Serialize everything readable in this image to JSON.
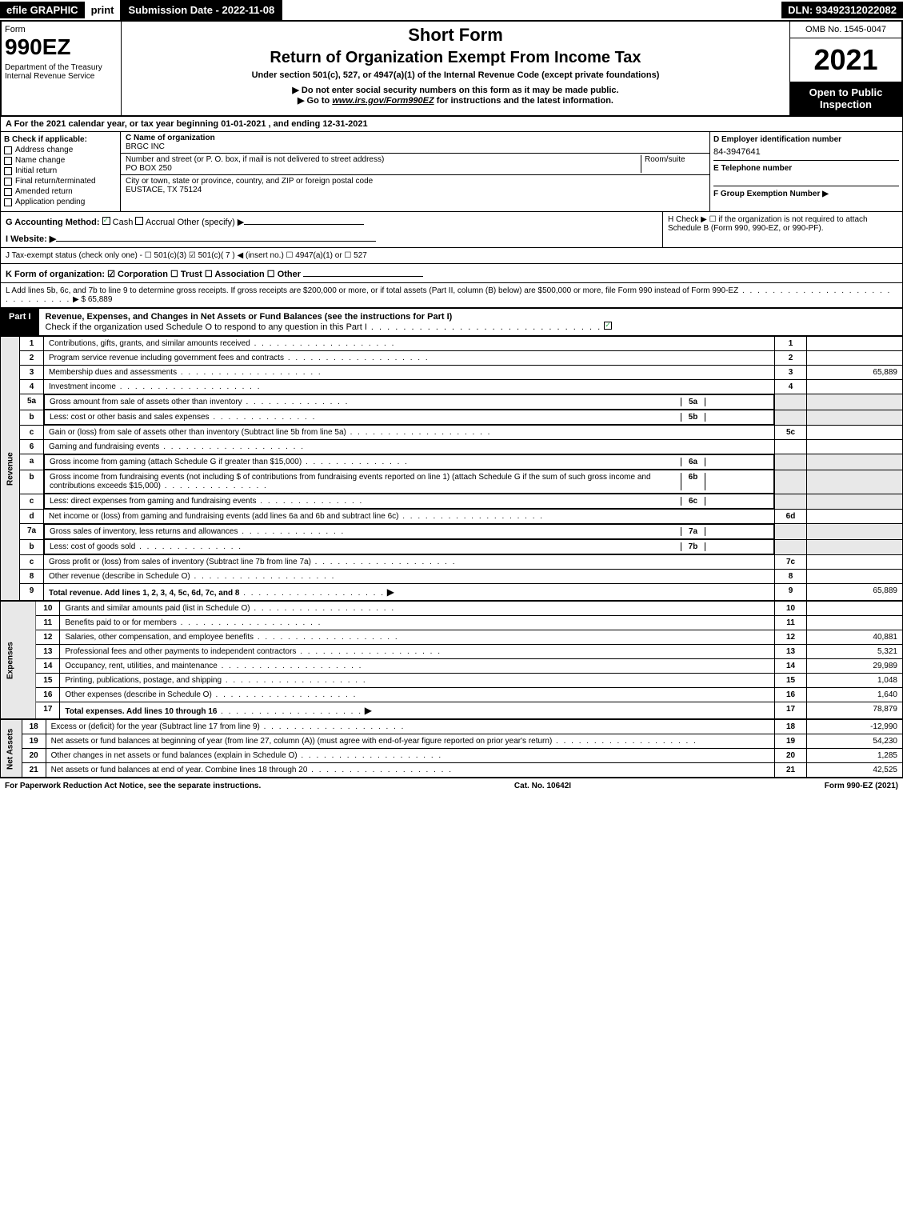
{
  "top_bar": {
    "efile": "efile GRAPHIC",
    "print": "print",
    "submission_date": "Submission Date - 2022-11-08",
    "dln": "DLN: 93492312022082"
  },
  "header": {
    "form_label": "Form",
    "form_number": "990EZ",
    "dept": "Department of the Treasury\nInternal Revenue Service",
    "short_form": "Short Form",
    "return_title": "Return of Organization Exempt From Income Tax",
    "under_section": "Under section 501(c), 527, or 4947(a)(1) of the Internal Revenue Code (except private foundations)",
    "do_not": "▶ Do not enter social security numbers on this form as it may be made public.",
    "goto_prefix": "▶ Go to ",
    "goto_link": "www.irs.gov/Form990EZ",
    "goto_suffix": " for instructions and the latest information.",
    "omb": "OMB No. 1545-0047",
    "year": "2021",
    "open": "Open to Public Inspection"
  },
  "line_a": "A  For the 2021 calendar year, or tax year beginning 01-01-2021 , and ending 12-31-2021",
  "box_b": {
    "header": "B  Check if applicable:",
    "items": [
      "Address change",
      "Name change",
      "Initial return",
      "Final return/terminated",
      "Amended return",
      "Application pending"
    ]
  },
  "box_c": {
    "name_label": "C Name of organization",
    "name": "BRGC INC",
    "addr_label": "Number and street (or P. O. box, if mail is not delivered to street address)",
    "room_label": "Room/suite",
    "addr": "PO BOX 250",
    "city_label": "City or town, state or province, country, and ZIP or foreign postal code",
    "city": "EUSTACE, TX  75124"
  },
  "box_d": {
    "ein_label": "D Employer identification number",
    "ein": "84-3947641",
    "phone_label": "E Telephone number",
    "group_label": "F Group Exemption Number   ▶"
  },
  "line_g": {
    "label": "G Accounting Method:",
    "cash": "Cash",
    "accrual": "Accrual",
    "other": "Other (specify) ▶"
  },
  "line_h": "H  Check ▶   ☐  if the organization is not required to attach Schedule B (Form 990, 990-EZ, or 990-PF).",
  "line_i": "I Website: ▶",
  "line_j": "J Tax-exempt status (check only one) - ☐ 501(c)(3) ☑ 501(c)( 7 ) ◀ (insert no.) ☐ 4947(a)(1) or ☐ 527",
  "line_k": "K Form of organization:  ☑ Corporation  ☐ Trust  ☐ Association  ☐ Other",
  "line_l": {
    "text": "L Add lines 5b, 6c, and 7b to line 9 to determine gross receipts. If gross receipts are $200,000 or more, or if total assets (Part II, column (B) below) are $500,000 or more, file Form 990 instead of Form 990-EZ",
    "amount": "▶ $ 65,889"
  },
  "part1": {
    "label": "Part I",
    "title": "Revenue, Expenses, and Changes in Net Assets or Fund Balances (see the instructions for Part I)",
    "check_line": "Check if the organization used Schedule O to respond to any question in this Part I"
  },
  "sections": {
    "revenue": "Revenue",
    "expenses": "Expenses",
    "net_assets": "Net Assets"
  },
  "rows": [
    {
      "n": "1",
      "desc": "Contributions, gifts, grants, and similar amounts received",
      "box": "1",
      "val": ""
    },
    {
      "n": "2",
      "desc": "Program service revenue including government fees and contracts",
      "box": "2",
      "val": ""
    },
    {
      "n": "3",
      "desc": "Membership dues and assessments",
      "box": "3",
      "val": "65,889"
    },
    {
      "n": "4",
      "desc": "Investment income",
      "box": "4",
      "val": ""
    },
    {
      "n": "5a",
      "desc": "Gross amount from sale of assets other than inventory",
      "inner": "5a",
      "box": "",
      "val": ""
    },
    {
      "n": "b",
      "desc": "Less: cost or other basis and sales expenses",
      "inner": "5b",
      "box": "",
      "val": ""
    },
    {
      "n": "c",
      "desc": "Gain or (loss) from sale of assets other than inventory (Subtract line 5b from line 5a)",
      "box": "5c",
      "val": ""
    },
    {
      "n": "6",
      "desc": "Gaming and fundraising events",
      "box": "",
      "val": ""
    },
    {
      "n": "a",
      "desc": "Gross income from gaming (attach Schedule G if greater than $15,000)",
      "inner": "6a",
      "box": "",
      "val": ""
    },
    {
      "n": "b",
      "desc": "Gross income from fundraising events (not including $                  of contributions from fundraising events reported on line 1) (attach Schedule G if the sum of such gross income and contributions exceeds $15,000)",
      "inner": "6b",
      "box": "",
      "val": ""
    },
    {
      "n": "c",
      "desc": "Less: direct expenses from gaming and fundraising events",
      "inner": "6c",
      "box": "",
      "val": ""
    },
    {
      "n": "d",
      "desc": "Net income or (loss) from gaming and fundraising events (add lines 6a and 6b and subtract line 6c)",
      "box": "6d",
      "val": ""
    },
    {
      "n": "7a",
      "desc": "Gross sales of inventory, less returns and allowances",
      "inner": "7a",
      "box": "",
      "val": ""
    },
    {
      "n": "b",
      "desc": "Less: cost of goods sold",
      "inner": "7b",
      "box": "",
      "val": ""
    },
    {
      "n": "c",
      "desc": "Gross profit or (loss) from sales of inventory (Subtract line 7b from line 7a)",
      "box": "7c",
      "val": ""
    },
    {
      "n": "8",
      "desc": "Other revenue (describe in Schedule O)",
      "box": "8",
      "val": ""
    },
    {
      "n": "9",
      "desc": "Total revenue. Add lines 1, 2, 3, 4, 5c, 6d, 7c, and 8",
      "box": "9",
      "val": "65,889",
      "bold": true,
      "arrow": true
    }
  ],
  "exp_rows": [
    {
      "n": "10",
      "desc": "Grants and similar amounts paid (list in Schedule O)",
      "box": "10",
      "val": ""
    },
    {
      "n": "11",
      "desc": "Benefits paid to or for members",
      "box": "11",
      "val": ""
    },
    {
      "n": "12",
      "desc": "Salaries, other compensation, and employee benefits",
      "box": "12",
      "val": "40,881"
    },
    {
      "n": "13",
      "desc": "Professional fees and other payments to independent contractors",
      "box": "13",
      "val": "5,321"
    },
    {
      "n": "14",
      "desc": "Occupancy, rent, utilities, and maintenance",
      "box": "14",
      "val": "29,989"
    },
    {
      "n": "15",
      "desc": "Printing, publications, postage, and shipping",
      "box": "15",
      "val": "1,048"
    },
    {
      "n": "16",
      "desc": "Other expenses (describe in Schedule O)",
      "box": "16",
      "val": "1,640"
    },
    {
      "n": "17",
      "desc": "Total expenses. Add lines 10 through 16",
      "box": "17",
      "val": "78,879",
      "bold": true,
      "arrow": true
    }
  ],
  "net_rows": [
    {
      "n": "18",
      "desc": "Excess or (deficit) for the year (Subtract line 17 from line 9)",
      "box": "18",
      "val": "-12,990"
    },
    {
      "n": "19",
      "desc": "Net assets or fund balances at beginning of year (from line 27, column (A)) (must agree with end-of-year figure reported on prior year's return)",
      "box": "19",
      "val": "54,230"
    },
    {
      "n": "20",
      "desc": "Other changes in net assets or fund balances (explain in Schedule O)",
      "box": "20",
      "val": "1,285"
    },
    {
      "n": "21",
      "desc": "Net assets or fund balances at end of year. Combine lines 18 through 20",
      "box": "21",
      "val": "42,525"
    }
  ],
  "footer": {
    "left": "For Paperwork Reduction Act Notice, see the separate instructions.",
    "mid": "Cat. No. 10642I",
    "right": "Form 990-EZ (2021)"
  }
}
